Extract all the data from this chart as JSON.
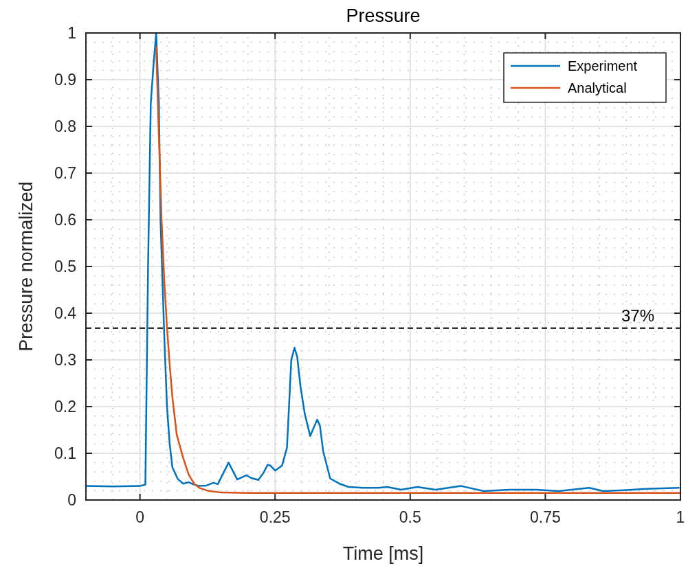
{
  "chart_data": {
    "type": "line",
    "title": "Pressure",
    "xlabel": "Time [ms]",
    "ylabel": "Pressure normalized",
    "xlim": [
      -0.1,
      1
    ],
    "xticks": [
      0,
      0.25,
      0.5,
      0.75,
      1
    ],
    "ylim": [
      0,
      1
    ],
    "yticks": [
      0,
      0.1,
      0.2,
      0.3,
      0.4,
      0.5,
      0.6,
      0.7,
      0.8,
      0.9,
      1
    ],
    "grid": true,
    "legend": "top right",
    "line_style": "solid",
    "series": [
      {
        "name": "Experiment",
        "color": "#0072bd",
        "x": [
          -0.1,
          -0.05,
          0,
          0.01,
          0.015,
          0.02,
          0.025,
          0.03,
          0.035,
          0.038,
          0.045,
          0.05,
          0.055,
          0.06,
          0.07,
          0.08,
          0.09,
          0.1,
          0.11,
          0.123,
          0.136,
          0.144,
          0.164,
          0.18,
          0.197,
          0.206,
          0.219,
          0.229,
          0.236,
          0.241,
          0.25,
          0.263,
          0.272,
          0.28,
          0.286,
          0.291,
          0.297,
          0.305,
          0.315,
          0.323,
          0.328,
          0.333,
          0.339,
          0.352,
          0.369,
          0.386,
          0.412,
          0.441,
          0.458,
          0.483,
          0.513,
          0.547,
          0.594,
          0.636,
          0.683,
          0.733,
          0.775,
          0.831,
          0.857,
          0.895,
          0.937,
          0.997
        ],
        "values": [
          0.03,
          0.029,
          0.03,
          0.033,
          0.5,
          0.85,
          0.93,
          1.0,
          0.85,
          0.6,
          0.35,
          0.2,
          0.12,
          0.07,
          0.045,
          0.035,
          0.038,
          0.033,
          0.03,
          0.031,
          0.037,
          0.034,
          0.08,
          0.044,
          0.053,
          0.047,
          0.043,
          0.059,
          0.075,
          0.074,
          0.063,
          0.074,
          0.112,
          0.3,
          0.326,
          0.306,
          0.243,
          0.184,
          0.137,
          0.159,
          0.172,
          0.159,
          0.104,
          0.046,
          0.035,
          0.028,
          0.026,
          0.026,
          0.028,
          0.022,
          0.028,
          0.022,
          0.03,
          0.019,
          0.022,
          0.022,
          0.019,
          0.026,
          0.019,
          0.021,
          0.024,
          0.026
        ]
      },
      {
        "name": "Analytical",
        "color": "#d95319",
        "x": [
          0.03,
          0.035,
          0.04,
          0.045,
          0.05,
          0.055,
          0.06,
          0.068,
          0.08,
          0.09,
          0.1,
          0.11,
          0.125,
          0.15,
          0.2,
          1
        ],
        "values": [
          0.97,
          0.78,
          0.6,
          0.47,
          0.37,
          0.29,
          0.22,
          0.14,
          0.09,
          0.055,
          0.035,
          0.026,
          0.02,
          0.016,
          0.015,
          0.015
        ]
      }
    ],
    "ref_lines": [
      {
        "axis": "y",
        "value": 0.368,
        "label": "37%",
        "color": "#000000",
        "line_style": "dashed"
      }
    ]
  }
}
